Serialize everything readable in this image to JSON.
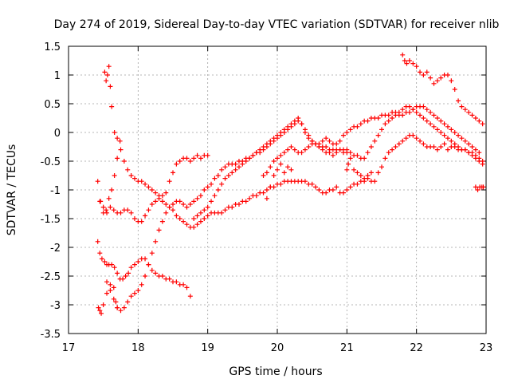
{
  "chart_data": {
    "type": "scatter",
    "title": "Day 274 of 2019, Sidereal Day-to-day VTEC variation (SDTVAR) for receiver nlib",
    "xlabel": "GPS time / hours",
    "ylabel": "SDTVAR / TECUs",
    "xlim": [
      17,
      23
    ],
    "ylim": [
      -3.5,
      1.5
    ],
    "x_ticks": [
      17,
      18,
      19,
      20,
      21,
      22,
      23
    ],
    "y_ticks": [
      -3.5,
      -3,
      -2.5,
      -2,
      -1.5,
      -1,
      -0.5,
      0,
      0.5,
      1,
      1.5
    ],
    "x_tick_labels": [
      "17",
      "18",
      "19",
      "20",
      "21",
      "22",
      "23"
    ],
    "y_tick_labels": [
      "-3.5",
      "-3",
      "-2.5",
      "-2",
      "-1.5",
      "-1",
      "-0.5",
      "0",
      "0.5",
      "1",
      "1.5"
    ],
    "grid": true,
    "marker": "+",
    "color": "#ff0000",
    "series": [
      {
        "x": [
          17.42,
          17.45,
          17.48,
          17.52,
          17.55,
          17.58,
          17.62,
          17.66,
          17.7,
          17.74,
          17.78,
          17.82,
          17.86,
          17.9,
          17.95,
          18.0,
          18.05,
          18.1,
          18.15,
          18.2,
          18.25,
          18.3,
          18.35,
          18.4,
          18.45,
          18.5,
          18.55,
          18.6,
          18.65,
          18.7,
          18.75
        ],
        "y": [
          -1.9,
          -2.1,
          -2.2,
          -2.25,
          -2.3,
          -2.3,
          -2.3,
          -2.35,
          -2.45,
          -2.55,
          -2.55,
          -2.5,
          -2.45,
          -2.35,
          -2.3,
          -2.25,
          -2.2,
          -2.2,
          -2.3,
          -2.4,
          -2.45,
          -2.5,
          -2.5,
          -2.55,
          -2.55,
          -2.6,
          -2.6,
          -2.65,
          -2.65,
          -2.7,
          -2.85
        ]
      },
      {
        "x": [
          17.42,
          17.46,
          17.5,
          17.54,
          17.58,
          17.62,
          17.66,
          17.7,
          17.75,
          17.8,
          17.85,
          17.9,
          17.95,
          18.0,
          18.05,
          18.1,
          18.15,
          18.2,
          18.25,
          18.3,
          18.35,
          18.4,
          18.45,
          18.5,
          18.55,
          18.6,
          18.65,
          18.7,
          18.75,
          18.8,
          18.85,
          18.9,
          18.95,
          19.0
        ],
        "y": [
          -0.85,
          -1.2,
          -1.4,
          -1.35,
          -1.15,
          -1.0,
          -0.75,
          -0.45,
          -0.3,
          -0.5,
          -0.65,
          -0.75,
          -0.8,
          -0.85,
          -0.85,
          -0.9,
          -0.95,
          -1.0,
          -1.05,
          -1.1,
          -1.1,
          -1.05,
          -0.85,
          -0.7,
          -0.55,
          -0.5,
          -0.45,
          -0.45,
          -0.5,
          -0.45,
          -0.4,
          -0.45,
          -0.4,
          -0.4
        ]
      },
      {
        "x": [
          17.52,
          17.54,
          17.56,
          17.58,
          17.6,
          17.62,
          17.66,
          17.7,
          17.74
        ],
        "y": [
          1.05,
          0.9,
          1.0,
          1.15,
          0.8,
          0.45,
          0.0,
          -0.1,
          -0.15
        ]
      },
      {
        "x": [
          17.45,
          17.5,
          17.55,
          17.6,
          17.65,
          17.7,
          17.75,
          17.8,
          17.85,
          17.9,
          17.95,
          18.0,
          18.05,
          18.1,
          18.15,
          18.2,
          18.25,
          18.3,
          18.35,
          18.4,
          18.45,
          18.5,
          18.55,
          18.6,
          18.65,
          18.7,
          18.75,
          18.8,
          18.85,
          18.9,
          18.95,
          19.0,
          19.05,
          19.1,
          19.15,
          19.2,
          19.25,
          19.3,
          19.35,
          19.4,
          19.45,
          19.5,
          19.55,
          19.6,
          19.65,
          19.7,
          19.75,
          19.8,
          19.85,
          19.9,
          19.95,
          20.0,
          20.05,
          20.1,
          20.15,
          20.2,
          20.25,
          20.3,
          20.35,
          20.4,
          20.45,
          20.5,
          20.55,
          20.6,
          20.65,
          20.7,
          20.75,
          20.8,
          20.85,
          20.9,
          20.95,
          21.0,
          21.05,
          21.1,
          21.15,
          21.2,
          21.25,
          21.3,
          21.35,
          21.4,
          21.45,
          21.5,
          21.55,
          21.6,
          21.65,
          21.7,
          21.75,
          21.8,
          21.85,
          21.9,
          21.95,
          22.0,
          22.05,
          22.1,
          22.15,
          22.2,
          22.25,
          22.3,
          22.35,
          22.4,
          22.45,
          22.5,
          22.55,
          22.6,
          22.65,
          22.7,
          22.75,
          22.8,
          22.85,
          22.9,
          22.95
        ],
        "y": [
          -1.2,
          -1.3,
          -1.4,
          -1.3,
          -1.35,
          -1.4,
          -1.4,
          -1.35,
          -1.35,
          -1.4,
          -1.5,
          -1.55,
          -1.55,
          -1.45,
          -1.35,
          -1.25,
          -1.2,
          -1.15,
          -1.2,
          -1.25,
          -1.3,
          -1.35,
          -1.45,
          -1.5,
          -1.55,
          -1.6,
          -1.65,
          -1.65,
          -1.6,
          -1.55,
          -1.5,
          -1.45,
          -1.4,
          -1.4,
          -1.4,
          -1.4,
          -1.35,
          -1.3,
          -1.3,
          -1.25,
          -1.25,
          -1.2,
          -1.2,
          -1.15,
          -1.1,
          -1.1,
          -1.05,
          -1.05,
          -1.0,
          -0.95,
          -0.95,
          -0.9,
          -0.9,
          -0.85,
          -0.85,
          -0.85,
          -0.85,
          -0.85,
          -0.85,
          -0.85,
          -0.9,
          -0.9,
          -0.95,
          -1.0,
          -1.05,
          -1.05,
          -1.0,
          -1.0,
          -0.95,
          -1.05,
          -1.05,
          -1.0,
          -0.95,
          -0.9,
          -0.9,
          -0.85,
          -0.85,
          -0.8,
          -0.85,
          -0.85,
          -0.7,
          -0.6,
          -0.45,
          -0.35,
          -0.3,
          -0.25,
          -0.2,
          -0.15,
          -0.1,
          -0.05,
          -0.05,
          -0.1,
          -0.15,
          -0.2,
          -0.25,
          -0.25,
          -0.25,
          -0.3,
          -0.25,
          -0.2,
          -0.3,
          -0.25,
          -0.25,
          -0.3,
          -0.3,
          -0.3,
          -0.35,
          -0.4,
          -0.45,
          -0.5,
          -0.55
        ]
      },
      {
        "x": [
          17.55,
          17.6,
          17.65,
          17.7,
          17.75,
          17.8,
          17.85,
          17.9,
          17.95,
          18.0,
          18.05,
          18.1,
          18.15,
          18.2,
          18.25,
          18.3,
          18.35,
          18.4,
          18.45,
          18.5,
          18.55,
          18.6,
          18.65,
          18.7,
          18.75,
          18.8,
          18.85,
          18.9,
          18.95,
          19.0,
          19.05,
          19.1,
          19.15,
          19.2,
          19.25,
          19.3,
          19.35,
          19.4,
          19.45,
          19.5,
          19.55,
          19.6,
          19.65,
          19.7,
          19.75,
          19.8,
          19.85,
          19.9,
          19.95,
          20.0,
          20.05,
          20.1,
          20.15,
          20.2,
          20.25,
          20.3,
          20.35,
          20.4,
          20.45,
          20.5,
          20.55,
          20.6,
          20.65,
          20.7,
          20.75,
          20.8,
          20.85,
          20.9,
          20.95,
          21.0
        ],
        "y": [
          -2.6,
          -2.75,
          -2.9,
          -3.05,
          -3.1,
          -3.05,
          -2.95,
          -2.85,
          -2.8,
          -2.75,
          -2.65,
          -2.5,
          -2.3,
          -2.1,
          -1.9,
          -1.7,
          -1.55,
          -1.4,
          -1.3,
          -1.25,
          -1.2,
          -1.2,
          -1.25,
          -1.3,
          -1.25,
          -1.2,
          -1.15,
          -1.1,
          -1.0,
          -0.95,
          -0.9,
          -0.8,
          -0.75,
          -0.65,
          -0.6,
          -0.55,
          -0.55,
          -0.55,
          -0.5,
          -0.5,
          -0.45,
          -0.45,
          -0.4,
          -0.35,
          -0.35,
          -0.3,
          -0.25,
          -0.2,
          -0.15,
          -0.1,
          -0.05,
          0.0,
          0.05,
          0.1,
          0.15,
          0.2,
          0.15,
          0.05,
          -0.05,
          -0.15,
          -0.2,
          -0.25,
          -0.25,
          -0.25,
          -0.3,
          -0.3,
          -0.3,
          -0.3,
          -0.35,
          -0.35
        ]
      },
      {
        "x": [
          18.8,
          18.85,
          18.9,
          18.95,
          19.0,
          19.05,
          19.1,
          19.15,
          19.2,
          19.25,
          19.3,
          19.35,
          19.4,
          19.45,
          19.5,
          19.55,
          19.6,
          19.65,
          19.7,
          19.75,
          19.8,
          19.85,
          19.9,
          19.95,
          20.0,
          20.05,
          20.1,
          20.15,
          20.2,
          20.25,
          20.3,
          20.35,
          20.4,
          20.45,
          20.5,
          20.55,
          20.6,
          20.65,
          20.7,
          20.75,
          20.8,
          20.85,
          20.9,
          20.95,
          21.0,
          21.05,
          21.1,
          21.15,
          21.2,
          21.25,
          21.3,
          21.35,
          21.4,
          21.45,
          21.5,
          21.55,
          21.6,
          21.65,
          21.7,
          21.75,
          21.8,
          21.85,
          21.9,
          21.95,
          22.0,
          22.05,
          22.1,
          22.15,
          22.2,
          22.25,
          22.3,
          22.35,
          22.4,
          22.45,
          22.5,
          22.55,
          22.6,
          22.65,
          22.7,
          22.75,
          22.8,
          22.85,
          22.9,
          22.95
        ],
        "y": [
          -1.5,
          -1.45,
          -1.4,
          -1.35,
          -1.3,
          -1.2,
          -1.1,
          -1.0,
          -0.9,
          -0.8,
          -0.75,
          -0.7,
          -0.65,
          -0.6,
          -0.55,
          -0.5,
          -0.45,
          -0.4,
          -0.35,
          -0.3,
          -0.25,
          -0.2,
          -0.15,
          -0.1,
          -0.05,
          0.0,
          0.05,
          0.1,
          0.15,
          0.2,
          0.25,
          0.15,
          0.0,
          -0.1,
          -0.15,
          -0.2,
          -0.2,
          -0.15,
          -0.1,
          -0.15,
          -0.2,
          -0.2,
          -0.15,
          -0.05,
          0.0,
          0.05,
          0.1,
          0.1,
          0.15,
          0.2,
          0.2,
          0.25,
          0.25,
          0.25,
          0.3,
          0.3,
          0.3,
          0.35,
          0.35,
          0.35,
          0.4,
          0.45,
          0.45,
          0.4,
          0.35,
          0.3,
          0.25,
          0.2,
          0.15,
          0.1,
          0.05,
          0.0,
          -0.05,
          -0.1,
          -0.15,
          -0.2,
          -0.25,
          -0.3,
          -0.3,
          -0.35,
          -0.35,
          -0.4,
          -0.45,
          -0.5
        ]
      },
      {
        "x": [
          19.8,
          19.85,
          19.9,
          19.95,
          20.0,
          20.05,
          20.1,
          20.15,
          20.2,
          20.25,
          20.3,
          20.35,
          20.4,
          20.45,
          20.5,
          20.55,
          20.6,
          20.65,
          20.7,
          20.75,
          20.8,
          20.85,
          20.9,
          20.95,
          21.0,
          21.05,
          21.1,
          21.15,
          21.2,
          21.25,
          21.3,
          21.35,
          21.4,
          21.45,
          21.5,
          21.55,
          21.6,
          21.65,
          21.7,
          21.75,
          21.8,
          21.85,
          21.9,
          21.95,
          22.0,
          22.05,
          22.1,
          22.15,
          22.2,
          22.25,
          22.3,
          22.35,
          22.4,
          22.45,
          22.5,
          22.55,
          22.6,
          22.65,
          22.7,
          22.75,
          22.8,
          22.85,
          22.9
        ],
        "y": [
          -0.75,
          -0.7,
          -0.6,
          -0.5,
          -0.45,
          -0.4,
          -0.35,
          -0.3,
          -0.25,
          -0.3,
          -0.35,
          -0.35,
          -0.3,
          -0.25,
          -0.2,
          -0.2,
          -0.25,
          -0.3,
          -0.35,
          -0.35,
          -0.4,
          -0.35,
          -0.3,
          -0.3,
          -0.3,
          -0.35,
          -0.4,
          -0.4,
          -0.45,
          -0.45,
          -0.35,
          -0.25,
          -0.15,
          -0.05,
          0.05,
          0.15,
          0.2,
          0.25,
          0.3,
          0.3,
          0.3,
          0.35,
          0.35,
          0.4,
          0.45,
          0.45,
          0.45,
          0.4,
          0.35,
          0.3,
          0.25,
          0.2,
          0.15,
          0.1,
          0.05,
          0.0,
          -0.05,
          -0.1,
          -0.15,
          -0.2,
          -0.25,
          -0.3,
          -0.35
        ]
      },
      {
        "x": [
          21.8,
          21.83,
          21.86,
          21.9,
          21.95,
          22.0,
          22.05,
          22.1,
          22.15,
          22.2,
          22.25,
          22.3,
          22.35,
          22.4,
          22.45,
          22.5,
          22.55,
          22.6,
          22.65,
          22.7,
          22.75,
          22.8,
          22.85,
          22.9,
          22.95
        ],
        "y": [
          1.35,
          1.25,
          1.2,
          1.25,
          1.2,
          1.15,
          1.05,
          1.0,
          1.05,
          0.95,
          0.85,
          0.9,
          0.95,
          1.0,
          1.0,
          0.9,
          0.75,
          0.55,
          0.45,
          0.4,
          0.35,
          0.3,
          0.25,
          0.2,
          0.15
        ]
      },
      {
        "x": [
          22.85,
          22.88,
          22.91,
          22.94,
          22.96
        ],
        "y": [
          -0.95,
          -1.0,
          -0.95,
          -0.95,
          -0.95
        ]
      },
      {
        "x": [
          17.43,
          17.45,
          17.47,
          17.5,
          17.55,
          17.6,
          17.65,
          17.68,
          17.7
        ],
        "y": [
          -3.05,
          -3.1,
          -3.15,
          -3.0,
          -2.8,
          -2.65,
          -2.7,
          -2.95,
          -3.05
        ]
      },
      {
        "x": [
          19.85,
          19.9,
          19.95,
          20.0,
          20.05,
          20.1,
          20.15,
          20.2,
          21.0,
          21.02,
          21.05,
          21.1,
          21.15,
          21.2,
          21.25,
          21.3,
          21.35
        ],
        "y": [
          -1.15,
          -0.95,
          -0.75,
          -0.65,
          -0.55,
          -0.7,
          -0.6,
          -0.65,
          -0.65,
          -0.55,
          -0.45,
          -0.65,
          -0.7,
          -0.75,
          -0.8,
          -0.75,
          -0.7
        ]
      }
    ]
  }
}
